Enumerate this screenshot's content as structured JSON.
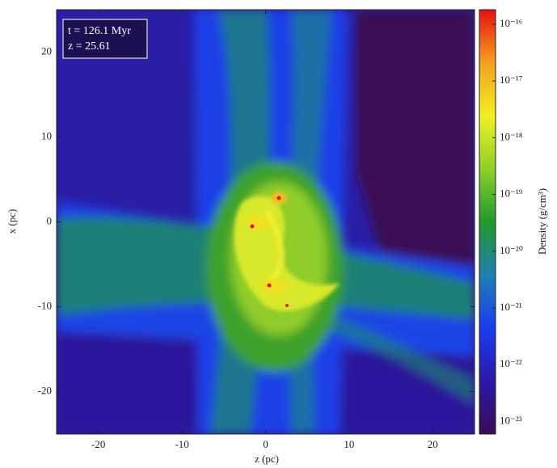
{
  "chart_data": {
    "type": "density-map",
    "xlabel": "z (pc)",
    "ylabel": "x (pc)",
    "annotations": [
      "t = 126.1 Myr",
      "z = 25.61"
    ],
    "xlim": [
      -25,
      25
    ],
    "ylim": [
      -25,
      25
    ],
    "xticks": [
      -20,
      -10,
      0,
      10,
      20
    ],
    "yticks": [
      -20,
      -10,
      0,
      10,
      20
    ],
    "colorbar": {
      "label": "Density (g/cm³)",
      "log": true,
      "lim": [
        6e-24,
        1.8e-16
      ],
      "ticks": [
        {
          "value": 1e-23,
          "label": "10⁻²³"
        },
        {
          "value": 1e-22,
          "label": "10⁻²²"
        },
        {
          "value": 1e-21,
          "label": "10⁻²¹"
        },
        {
          "value": 1e-20,
          "label": "10⁻²⁰"
        },
        {
          "value": 1e-19,
          "label": "10⁻¹⁹"
        },
        {
          "value": 1e-18,
          "label": "10⁻¹⁸"
        },
        {
          "value": 1e-17,
          "label": "10⁻¹⁷"
        },
        {
          "value": 1e-16,
          "label": "10⁻¹⁶"
        }
      ],
      "colormap": [
        "#3b0a55",
        "#2a1aa8",
        "#1a3cf0",
        "#1f7fb0",
        "#1f9a2a",
        "#8fd02a",
        "#f0f020",
        "#f5a020",
        "#e81010"
      ]
    }
  }
}
